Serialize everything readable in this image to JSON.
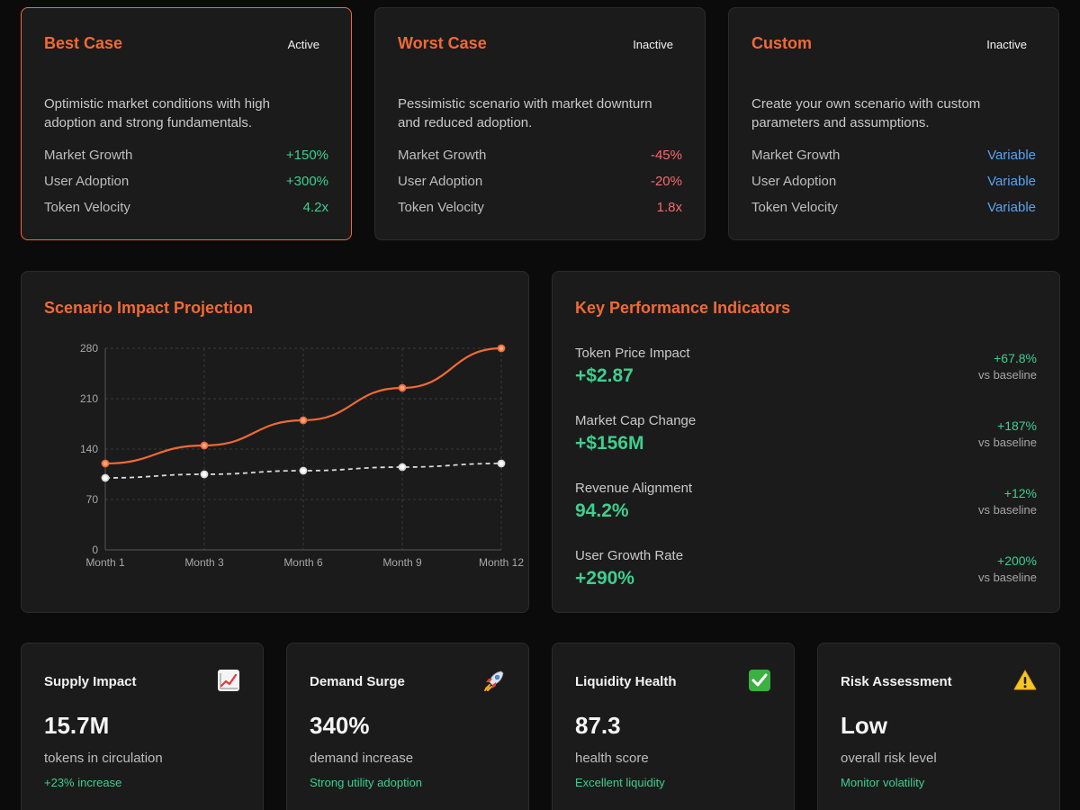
{
  "scenarios": [
    {
      "title": "Best Case",
      "status": "Active",
      "description": "Optimistic market conditions with high adoption and strong fundamentals.",
      "metrics": [
        {
          "label": "Market Growth",
          "value": "+150%",
          "tone": "pos"
        },
        {
          "label": "User Adoption",
          "value": "+300%",
          "tone": "pos"
        },
        {
          "label": "Token Velocity",
          "value": "4.2x",
          "tone": "pos"
        }
      ]
    },
    {
      "title": "Worst Case",
      "status": "Inactive",
      "description": "Pessimistic scenario with market downturn and reduced adoption.",
      "metrics": [
        {
          "label": "Market Growth",
          "value": "-45%",
          "tone": "neg"
        },
        {
          "label": "User Adoption",
          "value": "-20%",
          "tone": "neg"
        },
        {
          "label": "Token Velocity",
          "value": "1.8x",
          "tone": "neg"
        }
      ]
    },
    {
      "title": "Custom",
      "status": "Inactive",
      "description": "Create your own scenario with custom parameters and assumptions.",
      "metrics": [
        {
          "label": "Market Growth",
          "value": "Variable",
          "tone": "var"
        },
        {
          "label": "User Adoption",
          "value": "Variable",
          "tone": "var"
        },
        {
          "label": "Token Velocity",
          "value": "Variable",
          "tone": "var"
        }
      ]
    }
  ],
  "projection": {
    "title": "Scenario Impact Projection",
    "chart_data": {
      "type": "line",
      "categories": [
        "Month 1",
        "Month 3",
        "Month 6",
        "Month 9",
        "Month 12"
      ],
      "series": [
        {
          "values": [
            120,
            145,
            180,
            225,
            280
          ],
          "color": "#f06a35",
          "style": "solid"
        },
        {
          "values": [
            100,
            105,
            110,
            115,
            120
          ],
          "color": "#d9d9d9",
          "style": "dashed"
        }
      ],
      "yticks": [
        0,
        70,
        140,
        210,
        280
      ],
      "ylim": [
        0,
        280
      ],
      "grid": true
    }
  },
  "kpis": {
    "title": "Key Performance Indicators",
    "items": [
      {
        "label": "Token Price Impact",
        "value": "+$2.87",
        "change": "+67.8%",
        "baseline": "vs baseline"
      },
      {
        "label": "Market Cap Change",
        "value": "+$156M",
        "change": "+187%",
        "baseline": "vs baseline"
      },
      {
        "label": "Revenue Alignment",
        "value": "94.2%",
        "change": "+12%",
        "baseline": "vs baseline"
      },
      {
        "label": "User Growth Rate",
        "value": "+290%",
        "change": "+200%",
        "baseline": "vs baseline"
      }
    ]
  },
  "metrics": [
    {
      "title": "Supply Impact",
      "icon": "chart-increasing-icon",
      "value": "15.7M",
      "subtitle": "tokens in circulation",
      "note": "+23% increase"
    },
    {
      "title": "Demand Surge",
      "icon": "rocket-icon",
      "value": "340%",
      "subtitle": "demand increase",
      "note": "Strong utility adoption"
    },
    {
      "title": "Liquidity Health",
      "icon": "check-mark-icon",
      "value": "87.3",
      "subtitle": "health score",
      "note": "Excellent liquidity"
    },
    {
      "title": "Risk Assessment",
      "icon": "warning-icon",
      "value": "Low",
      "subtitle": "overall risk level",
      "note": "Monitor volatility"
    }
  ],
  "colors": {
    "accent": "#f06a35",
    "positive": "#3ecf8e",
    "negative": "#f36b6b",
    "variable": "#5aa2f0"
  }
}
